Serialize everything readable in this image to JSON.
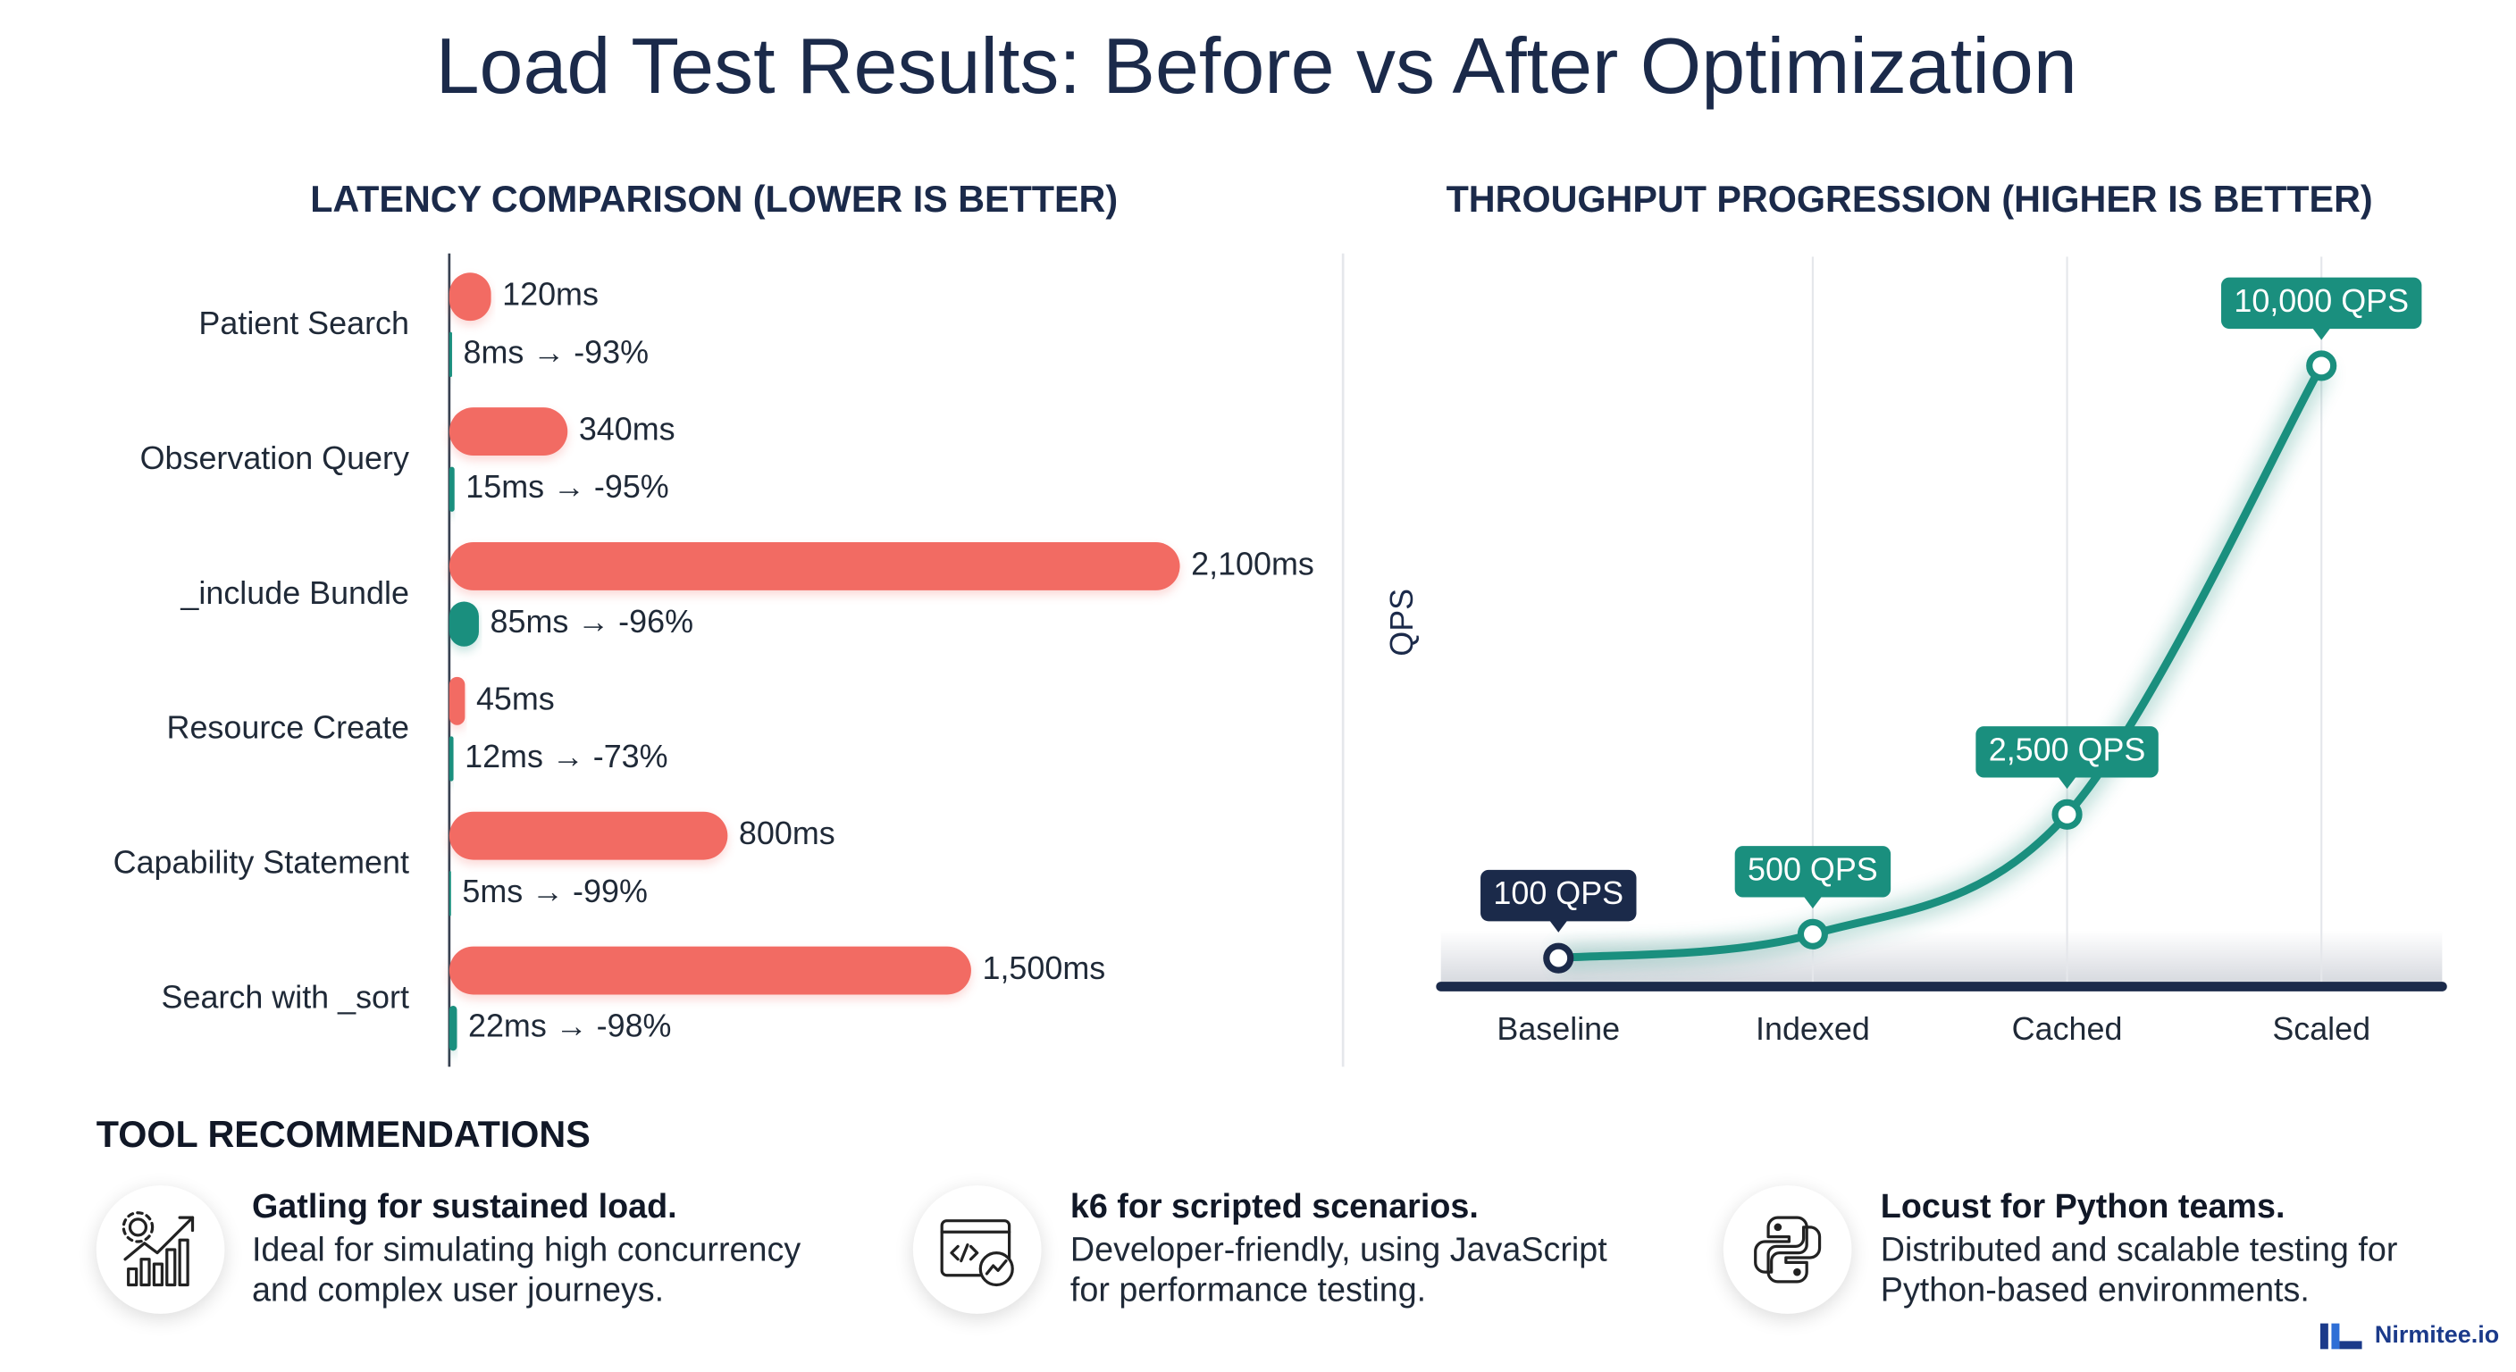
{
  "title": "Load Test Results: Before vs After Optimization",
  "chart_data": [
    {
      "type": "hbar",
      "title": "LATENCY COMPARISON (LOWER IS BETTER)",
      "categories": [
        "Patient Search",
        "Observation Query",
        "_include Bundle",
        "Resource Create",
        "Capability Statement",
        "Search with _sort"
      ],
      "xlim": [
        0,
        2200
      ],
      "series": [
        {
          "color": "#f26b63",
          "values": [
            120,
            340,
            2100,
            45,
            800,
            1500
          ],
          "value_labels": [
            "120ms",
            "340ms",
            "2,100ms",
            "45ms",
            "800ms",
            "1,500ms"
          ]
        },
        {
          "color": "#1a8f7e",
          "values": [
            8,
            15,
            85,
            12,
            5,
            22
          ],
          "value_labels": [
            "8ms → -93%",
            "15ms → -95%",
            "85ms → -96%",
            "12ms → -73%",
            "5ms → -99%",
            "22ms → -98%"
          ]
        }
      ]
    },
    {
      "type": "line",
      "title": "THROUGHPUT PROGRESSION (HIGHER IS BETTER)",
      "y_label": "QPS",
      "categories": [
        "Baseline",
        "Indexed",
        "Cached",
        "Scaled"
      ],
      "ylim": [
        0,
        11500
      ],
      "series": [
        {
          "color": "#1a8f7e",
          "values": [
            100,
            500,
            2500,
            10000
          ],
          "value_labels": [
            "100 QPS",
            "500 QPS",
            "2,500 QPS",
            "10,000 QPS"
          ]
        }
      ]
    }
  ],
  "tools": {
    "title": "TOOL RECOMMENDATIONS",
    "items": [
      {
        "title": "Gatling for sustained load.",
        "description": "Ideal for simulating high concurrency and complex user journeys."
      },
      {
        "title": "k6 for scripted scenarios.",
        "description": "Developer-friendly, using JavaScript for performance testing."
      },
      {
        "title": "Locust for Python teams.",
        "description": "Distributed and scalable testing for Python-based environments."
      }
    ]
  },
  "brand": "Nirmitee.io"
}
